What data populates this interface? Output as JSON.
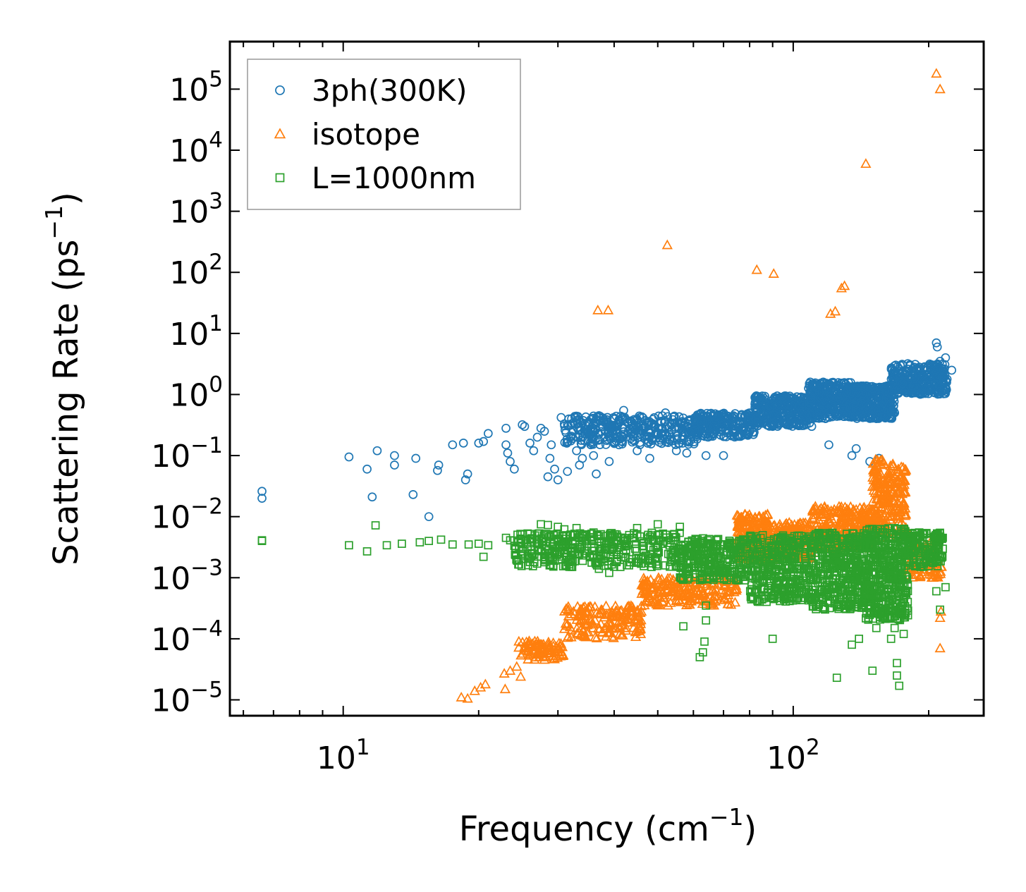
{
  "chart_data": {
    "type": "scatter",
    "title": "",
    "xlabel": "Frequency (cm",
    "xlabel_sup": "−1",
    "xlabel_tail": ")",
    "ylabel": "Scattering Rate (ps",
    "ylabel_sup": "−1",
    "ylabel_tail": ")",
    "xscale": "log",
    "yscale": "log",
    "xlim": [
      5.6,
      265
    ],
    "ylim": [
      5.5e-06,
      600000.0
    ],
    "xticks": [
      {
        "value": 10,
        "base": "10",
        "exp": "1"
      },
      {
        "value": 100,
        "base": "10",
        "exp": "2"
      }
    ],
    "yticks": [
      {
        "value": 1e-05,
        "base": "10",
        "exp": "−5"
      },
      {
        "value": 0.0001,
        "base": "10",
        "exp": "−4"
      },
      {
        "value": 0.001,
        "base": "10",
        "exp": "−3"
      },
      {
        "value": 0.01,
        "base": "10",
        "exp": "−2"
      },
      {
        "value": 0.1,
        "base": "10",
        "exp": "−1"
      },
      {
        "value": 1,
        "base": "10",
        "exp": "0"
      },
      {
        "value": 10,
        "base": "10",
        "exp": "1"
      },
      {
        "value": 100,
        "base": "10",
        "exp": "2"
      },
      {
        "value": 1000,
        "base": "10",
        "exp": "3"
      },
      {
        "value": 10000,
        "base": "10",
        "exp": "4"
      },
      {
        "value": 100000,
        "base": "10",
        "exp": "5"
      }
    ],
    "legend_position": "top-left",
    "series": [
      {
        "name": "3ph(300K)",
        "marker": "circle",
        "color": "#1f77b4",
        "points": [
          [
            6.6,
            0.026
          ],
          [
            6.6,
            0.02
          ],
          [
            10.3,
            0.095
          ],
          [
            11.3,
            0.06
          ],
          [
            11.9,
            0.12
          ],
          [
            11.6,
            0.021
          ],
          [
            13,
            0.1
          ],
          [
            13,
            0.07
          ],
          [
            14.5,
            0.09
          ],
          [
            14.3,
            0.023
          ],
          [
            15.5,
            0.01
          ],
          [
            16.3,
            0.07
          ],
          [
            16.2,
            0.057
          ],
          [
            17.5,
            0.15
          ],
          [
            18.5,
            0.16
          ],
          [
            18.7,
            0.04
          ],
          [
            18.9,
            0.05
          ],
          [
            20,
            0.16
          ],
          [
            20.5,
            0.17
          ],
          [
            21,
            0.23
          ],
          [
            23,
            0.28
          ],
          [
            23,
            0.15
          ],
          [
            23.2,
            0.11
          ],
          [
            23.5,
            0.08
          ],
          [
            24,
            0.06
          ],
          [
            25,
            0.32
          ],
          [
            25.3,
            0.3
          ],
          [
            26,
            0.16
          ],
          [
            26.5,
            0.12
          ],
          [
            27,
            0.2
          ],
          [
            27.5,
            0.28
          ],
          [
            28,
            0.25
          ],
          [
            28.5,
            0.045
          ],
          [
            28.8,
            0.09
          ],
          [
            29,
            0.15
          ],
          [
            29.5,
            0.06
          ],
          [
            30,
            0.04
          ],
          [
            30.5,
            0.42
          ],
          [
            31,
            0.33
          ],
          [
            31.5,
            0.055
          ],
          [
            32,
            0.2
          ],
          [
            32.5,
            0.25
          ],
          [
            33,
            0.12
          ],
          [
            33.5,
            0.07
          ],
          [
            34,
            0.09
          ],
          [
            35,
            0.32
          ],
          [
            35.5,
            0.15
          ],
          [
            36,
            0.1
          ],
          [
            36.5,
            0.05
          ],
          [
            37,
            0.45
          ],
          [
            38,
            0.2
          ],
          [
            39,
            0.08
          ],
          [
            40,
            0.3
          ],
          [
            41,
            0.15
          ],
          [
            42,
            0.55
          ],
          [
            43,
            0.25
          ],
          [
            44,
            0.18
          ],
          [
            45,
            0.12
          ],
          [
            46,
            0.3
          ],
          [
            48,
            0.09
          ],
          [
            52,
            0.5
          ],
          [
            55,
            0.12
          ],
          [
            58,
            0.11
          ],
          [
            60,
            0.25
          ],
          [
            64,
            0.1
          ],
          [
            70,
            0.1
          ],
          [
            78,
            0.3
          ],
          [
            90,
            0.3
          ],
          [
            120,
            0.15
          ],
          [
            135,
            0.1
          ],
          [
            138,
            0.13
          ],
          [
            148,
            0.08
          ],
          [
            155,
            0.09
          ],
          [
            168,
            0.5
          ],
          [
            175,
            1.5
          ],
          [
            186,
            1.8
          ],
          [
            196,
            2.8
          ],
          [
            203,
            3.0
          ],
          [
            208,
            7.0
          ],
          [
            209,
            6.0
          ],
          [
            212,
            3.5
          ],
          [
            218,
            4.0
          ],
          [
            225,
            2.5
          ]
        ],
        "bands": [
          {
            "x_from": 31,
            "x_to": 62,
            "y_low": 0.15,
            "y_high": 0.45,
            "n": 330
          },
          {
            "x_from": 60,
            "x_to": 82,
            "y_low": 0.2,
            "y_high": 0.5,
            "n": 220
          },
          {
            "x_from": 82,
            "x_to": 110,
            "y_low": 0.3,
            "y_high": 0.95,
            "n": 330
          },
          {
            "x_from": 108,
            "x_to": 135,
            "y_low": 0.4,
            "y_high": 1.6,
            "n": 330
          },
          {
            "x_from": 135,
            "x_to": 168,
            "y_low": 0.4,
            "y_high": 1.4,
            "n": 330
          },
          {
            "x_from": 165,
            "x_to": 220,
            "y_low": 1.0,
            "y_high": 3.2,
            "n": 330
          }
        ]
      },
      {
        "name": "isotope",
        "marker": "triangle",
        "color": "#ff7f0e",
        "points": [
          [
            18.3,
            1.1e-05
          ],
          [
            18.9,
            1.05e-05
          ],
          [
            19.6,
            1.4e-05
          ],
          [
            20.2,
            1.6e-05
          ],
          [
            20.7,
            1.8e-05
          ],
          [
            22.8,
            2.7e-05
          ],
          [
            22.9,
            1.5e-05
          ],
          [
            23.5,
            3e-05
          ],
          [
            24.3,
            3.5e-05
          ],
          [
            24.8,
            2.4e-05
          ],
          [
            36.8,
            24
          ],
          [
            38.8,
            24
          ],
          [
            52.5,
            280
          ],
          [
            83,
            110
          ],
          [
            90.5,
            95
          ],
          [
            121,
            21
          ],
          [
            124,
            23
          ],
          [
            128,
            55
          ],
          [
            130,
            60
          ],
          [
            145,
            6000
          ],
          [
            208,
            180000
          ],
          [
            212,
            100000
          ],
          [
            212,
            7e-05
          ],
          [
            212,
            0.00022
          ],
          [
            213,
            0.00028
          ]
        ],
        "bands": [
          {
            "x_from": 24.5,
            "x_to": 31,
            "y_low": 4.5e-05,
            "y_high": 9.5e-05,
            "n": 90
          },
          {
            "x_from": 31,
            "x_to": 46,
            "y_low": 0.0001,
            "y_high": 0.00035,
            "n": 170
          },
          {
            "x_from": 46,
            "x_to": 75,
            "y_low": 0.00035,
            "y_high": 0.001,
            "n": 220
          },
          {
            "x_from": 75,
            "x_to": 88,
            "y_low": 0.002,
            "y_high": 0.011,
            "n": 200
          },
          {
            "x_from": 88,
            "x_to": 110,
            "y_low": 0.002,
            "y_high": 0.008,
            "n": 180
          },
          {
            "x_from": 110,
            "x_to": 150,
            "y_low": 0.003,
            "y_high": 0.015,
            "n": 260
          },
          {
            "x_from": 150,
            "x_to": 178,
            "y_low": 0.004,
            "y_high": 0.09,
            "n": 240
          },
          {
            "x_from": 178,
            "x_to": 214,
            "y_low": 0.001,
            "y_high": 0.004,
            "n": 90
          }
        ]
      },
      {
        "name": "L=1000nm",
        "marker": "square",
        "color": "#2ca02c",
        "points": [
          [
            6.6,
            0.0041
          ],
          [
            6.6,
            0.004
          ],
          [
            10.3,
            0.0034
          ],
          [
            11.3,
            0.0027
          ],
          [
            11.8,
            0.0072
          ],
          [
            12.5,
            0.0034
          ],
          [
            13.5,
            0.0036
          ],
          [
            14.8,
            0.0038
          ],
          [
            15.5,
            0.004
          ],
          [
            16.5,
            0.0042
          ],
          [
            17.5,
            0.0035
          ],
          [
            19,
            0.0035
          ],
          [
            20,
            0.0036
          ],
          [
            20.5,
            0.0022
          ],
          [
            21,
            0.0034
          ],
          [
            23,
            0.0045
          ],
          [
            23.5,
            0.0041
          ],
          [
            24.5,
            0.0038
          ],
          [
            25.5,
            0.0042
          ],
          [
            26.2,
            0.0028
          ],
          [
            27.5,
            0.0075
          ],
          [
            28.5,
            0.0073
          ],
          [
            30,
            0.0068
          ],
          [
            31,
            0.0062
          ],
          [
            33,
            0.0065
          ],
          [
            34.5,
            0.0025
          ],
          [
            36,
            0.0055
          ],
          [
            37,
            0.0014
          ],
          [
            39,
            0.0012
          ],
          [
            45,
            0.0065
          ],
          [
            50,
            0.0075
          ],
          [
            56,
            0.0068
          ],
          [
            62,
            5e-05
          ],
          [
            63,
            6e-05
          ],
          [
            63.5,
            9e-05
          ],
          [
            64,
            0.0002
          ],
          [
            64,
            0.00035
          ],
          [
            57,
            0.00016
          ],
          [
            90,
            0.0001
          ],
          [
            135,
            8e-05
          ],
          [
            140,
            0.0001
          ],
          [
            153,
            0.00015
          ],
          [
            165,
            0.0001
          ],
          [
            168,
            0.00015
          ],
          [
            170,
            2.5e-05
          ],
          [
            172,
            1.7e-05
          ],
          [
            170,
            4e-05
          ],
          [
            125,
            2.3e-05
          ],
          [
            150,
            3e-05
          ],
          [
            176,
            0.00012
          ],
          [
            201,
            0.002
          ],
          [
            208,
            0.0006
          ],
          [
            212,
            0.0003
          ],
          [
            218,
            0.0007
          ],
          [
            212,
            0.0022
          ],
          [
            215,
            0.0045
          ]
        ],
        "bands": [
          {
            "x_from": 24,
            "x_to": 56,
            "y_low": 0.0015,
            "y_high": 0.0055,
            "n": 380
          },
          {
            "x_from": 56,
            "x_to": 80,
            "y_low": 0.0009,
            "y_high": 0.0045,
            "n": 280
          },
          {
            "x_from": 80,
            "x_to": 110,
            "y_low": 0.0004,
            "y_high": 0.005,
            "n": 360
          },
          {
            "x_from": 110,
            "x_to": 145,
            "y_low": 0.0003,
            "y_high": 0.0055,
            "n": 420
          },
          {
            "x_from": 145,
            "x_to": 180,
            "y_low": 0.0002,
            "y_high": 0.0065,
            "n": 420
          },
          {
            "x_from": 180,
            "x_to": 215,
            "y_low": 0.0015,
            "y_high": 0.0055,
            "n": 150
          }
        ]
      }
    ]
  }
}
